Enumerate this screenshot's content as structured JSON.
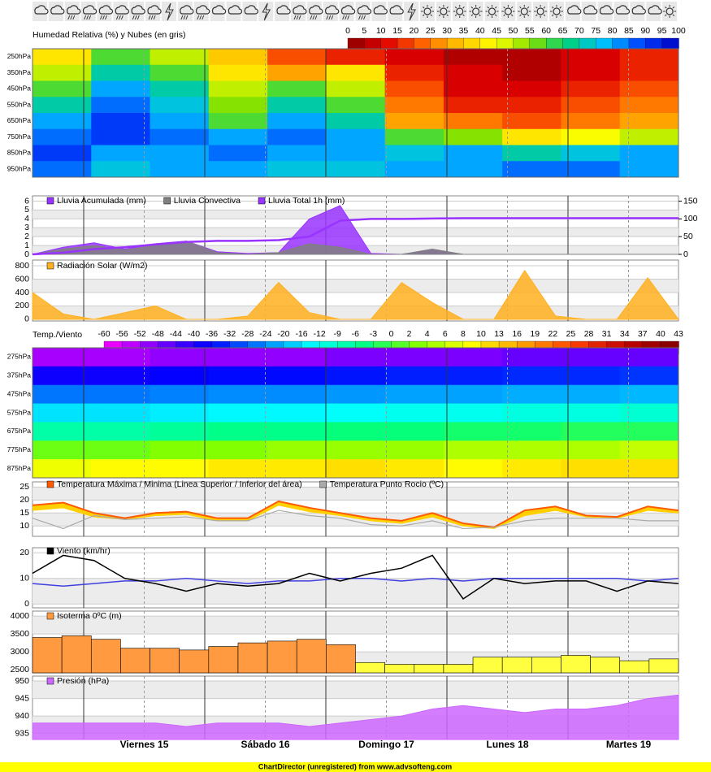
{
  "days": [
    "Viernes 15",
    "Sábado 16",
    "Domingo 17",
    "Lunes 18",
    "Martes 19"
  ],
  "footer": "ChartDirector (unregistered) from www.advsofteng.com",
  "chart_data": [
    {
      "type": "heatmap",
      "title": "Humedad Relativa (%) y Nubes (en gris)",
      "levels": [
        "250hPa",
        "350hPa",
        "450hPa",
        "550hPa",
        "650hPa",
        "750hPa",
        "850hPa",
        "950hPa"
      ],
      "cticks": [
        0,
        5,
        10,
        15,
        20,
        25,
        30,
        35,
        40,
        45,
        50,
        55,
        60,
        65,
        70,
        75,
        80,
        85,
        90,
        95,
        100
      ],
      "colors": [
        "#8b0000",
        "#e00000",
        "#ff6000",
        "#ffc000",
        "#ffff00",
        "#80e000",
        "#00d080",
        "#00c0ff",
        "#0040ff",
        "#0000c0"
      ],
      "values": [
        [
          40,
          60,
          50,
          35,
          20,
          15,
          10,
          5,
          5,
          10,
          15
        ],
        [
          50,
          70,
          60,
          40,
          30,
          40,
          15,
          10,
          5,
          10,
          15
        ],
        [
          60,
          80,
          70,
          50,
          60,
          50,
          20,
          10,
          10,
          15,
          20
        ],
        [
          70,
          85,
          75,
          55,
          70,
          60,
          25,
          15,
          15,
          20,
          25
        ],
        [
          80,
          90,
          80,
          60,
          80,
          70,
          30,
          25,
          20,
          25,
          30
        ],
        [
          85,
          90,
          85,
          80,
          85,
          80,
          60,
          55,
          40,
          45,
          50
        ],
        [
          90,
          80,
          80,
          85,
          80,
          80,
          75,
          80,
          70,
          75,
          80
        ],
        [
          85,
          75,
          80,
          80,
          75,
          75,
          80,
          80,
          85,
          85,
          80
        ]
      ]
    },
    {
      "type": "area",
      "ylim": [
        0,
        6.6
      ],
      "yticks": [
        0,
        1,
        2,
        3,
        4,
        5,
        6
      ],
      "y2lim": [
        0,
        165
      ],
      "y2ticks": [
        0,
        50,
        100,
        150
      ],
      "series": [
        {
          "name": "Lluvia Acumulada (mm)",
          "color": "#9933ff",
          "axis": "y2",
          "values": [
            0,
            5,
            15,
            20,
            28,
            35,
            38,
            38,
            40,
            50,
            95,
            100,
            100,
            101,
            102,
            102,
            102,
            102,
            102,
            102,
            102,
            102
          ]
        },
        {
          "name": "Lluvia Convectiva",
          "color": "#808080",
          "values": [
            0,
            0.6,
            1,
            0.5,
            1,
            1.5,
            0.2,
            0,
            0.2,
            1.2,
            0.8,
            0,
            0,
            0.6,
            0,
            0,
            0,
            0,
            0,
            0,
            0,
            0
          ]
        },
        {
          "name": "Lluvia Total 1h (mm)",
          "color": "#9933ff",
          "values": [
            0,
            0.8,
            1.3,
            0.6,
            1.2,
            1.5,
            0.3,
            0.1,
            0.2,
            4,
            5.5,
            0.1,
            0,
            0.5,
            0,
            0,
            0,
            0,
            0,
            0,
            0,
            0
          ]
        }
      ]
    },
    {
      "type": "area",
      "ylim": [
        -25,
        885
      ],
      "yticks": [
        0,
        200,
        400,
        600,
        800
      ],
      "series": [
        {
          "name": "Radiación Solar (W/m2)",
          "color": "#ffb020",
          "values": [
            400,
            80,
            0,
            100,
            200,
            0,
            0,
            50,
            550,
            100,
            0,
            0,
            550,
            250,
            0,
            0,
            730,
            50,
            0,
            0,
            620,
            0
          ]
        }
      ]
    },
    {
      "type": "heatmap",
      "title": "Temp./Viento",
      "levels": [
        "275hPa",
        "375hPa",
        "475hPa",
        "575hPa",
        "675hPa",
        "775hPa",
        "875hPa"
      ],
      "cticks": [
        -60,
        -56,
        -52,
        -48,
        -44,
        -40,
        -36,
        -32,
        -28,
        -24,
        -20,
        -16,
        -12,
        -9,
        -6,
        -3,
        0,
        2,
        4,
        6,
        8,
        10,
        13,
        16,
        19,
        22,
        25,
        28,
        31,
        34,
        37,
        40,
        43
      ],
      "colors": [
        "#ff00ff",
        "#8000ff",
        "#0000ff",
        "#0080ff",
        "#00ffff",
        "#00ff80",
        "#80ff00",
        "#ffff00",
        "#ffa000",
        "#ff4000",
        "#c00000",
        "#800000"
      ],
      "values": [
        [
          -52,
          -52,
          -50,
          -50,
          -50,
          -48,
          -48,
          -48,
          -46,
          -46,
          -46
        ],
        [
          -38,
          -38,
          -37,
          -36,
          -36,
          -35,
          -34,
          -34,
          -33,
          -33,
          -32
        ],
        [
          -26,
          -26,
          -25,
          -24,
          -24,
          -23,
          -22,
          -22,
          -21,
          -21,
          -20
        ],
        [
          -16,
          -16,
          -15,
          -14,
          -14,
          -13,
          -12,
          -12,
          -11,
          -11,
          -10
        ],
        [
          -7,
          -7,
          -6,
          -5,
          -5,
          -4,
          -4,
          -3,
          -3,
          -2,
          -2
        ],
        [
          2,
          2,
          3,
          3,
          4,
          4,
          4,
          5,
          5,
          5,
          6
        ],
        [
          8,
          9,
          9,
          10,
          10,
          11,
          10,
          9,
          10,
          11,
          11
        ]
      ]
    },
    {
      "type": "band",
      "ylim": [
        6,
        27
      ],
      "yticks": [
        10,
        15,
        20,
        25
      ],
      "series": [
        {
          "name": "Temperatura Máxima / Minima (Linea Superior / Inferior del área)",
          "color": "#ff5a00",
          "values": [
            18,
            19,
            15,
            13,
            15,
            15.5,
            13,
            13,
            19.5,
            17,
            15,
            13,
            12,
            15,
            11,
            9.5,
            16,
            17.5,
            14,
            13.5,
            17.5,
            16
          ]
        },
        {
          "color": "#ffd000",
          "values": [
            16,
            17,
            13.5,
            12.5,
            14,
            14.5,
            12,
            12,
            18,
            15.5,
            14,
            12,
            11,
            13.5,
            10,
            9,
            14,
            16,
            13.5,
            13,
            16,
            15
          ]
        },
        {
          "name": "Temperatura Punto Rocio (ºC)",
          "color": "#aaaaaa",
          "values": [
            13,
            9,
            14,
            12.5,
            13,
            13.5,
            12,
            12,
            16,
            14,
            13,
            10.5,
            10,
            12,
            9,
            9.5,
            12,
            13,
            13,
            13,
            12,
            12
          ]
        }
      ]
    },
    {
      "type": "line",
      "ylim": [
        -1.5,
        22
      ],
      "yticks": [
        0,
        10,
        20
      ],
      "series": [
        {
          "name": "Viento (km/hr)",
          "color": "#000000",
          "values": [
            12,
            19,
            17,
            10,
            8,
            5,
            8,
            7,
            8,
            12,
            9,
            12,
            14,
            19,
            2,
            10,
            8,
            9,
            9,
            5,
            9,
            8
          ]
        },
        {
          "color": "#4040e0",
          "values": [
            8,
            7,
            8,
            9,
            9,
            10,
            9,
            8,
            9,
            9,
            10,
            10,
            9,
            10,
            9,
            10,
            10,
            10,
            10,
            10,
            9,
            10
          ]
        }
      ]
    },
    {
      "type": "bar",
      "ylim": [
        2410,
        4140
      ],
      "yticks": [
        2500,
        3000,
        3500,
        4000
      ],
      "series": [
        {
          "name": "Isoterma 0ºC (m)",
          "color": "#ff9a40",
          "values": [
            3400,
            3450,
            3350,
            3100,
            3100,
            3050,
            3150,
            3250,
            3300,
            3350,
            3200,
            null,
            null,
            null,
            null,
            null,
            null,
            null,
            null,
            null,
            null,
            null
          ]
        },
        {
          "color": "#ffff40",
          "values": [
            null,
            null,
            null,
            null,
            null,
            null,
            null,
            null,
            null,
            null,
            null,
            2700,
            2650,
            2650,
            2650,
            2850,
            2850,
            2850,
            2900,
            2850,
            2750,
            2800
          ]
        }
      ]
    },
    {
      "type": "area",
      "ylim": [
        933.3,
        951.4
      ],
      "yticks": [
        935,
        940,
        945,
        950
      ],
      "series": [
        {
          "name": "Presión (hPa)",
          "color": "#cc66ff",
          "values": [
            938,
            938,
            938,
            938,
            938,
            937,
            938,
            938,
            938,
            937,
            938,
            939,
            940,
            942,
            943,
            942,
            941,
            942,
            942,
            943,
            945,
            946
          ]
        }
      ]
    }
  ]
}
